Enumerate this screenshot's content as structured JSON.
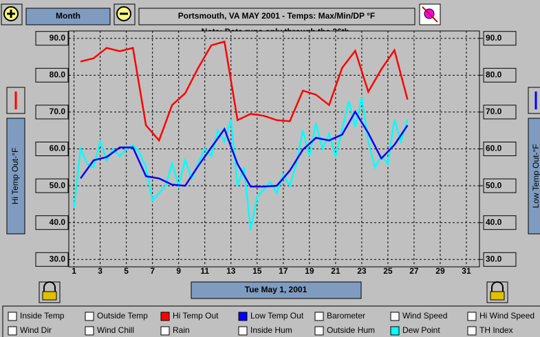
{
  "toolbar": {
    "period": "Month",
    "date": "Tue May 1, 2001"
  },
  "checkboxes": [
    "Inside Temp",
    "Outside Temp",
    "Barometer",
    "Wind Speed",
    "Hi Wind Speed",
    "Wind Dir",
    "Wind Chill",
    "Rain",
    "Inside Hum",
    "Outside Hum",
    "TH Index"
  ],
  "chart_data": {
    "type": "line",
    "title": "Portsmouth, VA MAY 2001 - Temps: Max/Min/DP °F",
    "subtitle": "Note: Data runs only through the 26th.",
    "y_label": "Hi Temp Out-°F",
    "y2_label": "Low Temp Out-°F",
    "xlim": [
      0.6,
      32
    ],
    "xticks": [
      1,
      3,
      5,
      7,
      9,
      11,
      13,
      15,
      17,
      19,
      21,
      23,
      25,
      27,
      29,
      31
    ],
    "ylim": [
      28,
      92
    ],
    "yticks": [
      {
        "value": 30,
        "label": "30.0"
      },
      {
        "value": 40,
        "label": "40.0"
      },
      {
        "value": 50,
        "label": "50.0"
      },
      {
        "value": 60,
        "label": "60.0"
      },
      {
        "value": 70,
        "label": "70.0"
      },
      {
        "value": 80,
        "label": "80.0"
      },
      {
        "value": 90,
        "label": "90.0"
      }
    ],
    "y2lim": [
      28,
      92
    ],
    "y2ticks": [
      {
        "value": 30,
        "label": "30.0"
      },
      {
        "value": 40,
        "label": "40.0"
      },
      {
        "value": 50,
        "label": "50.0"
      },
      {
        "value": 60,
        "label": "60.0"
      },
      {
        "value": 70,
        "label": "70.0"
      },
      {
        "value": 80,
        "label": "80.0"
      },
      {
        "value": 90,
        "label": "90.0"
      }
    ],
    "grid": true,
    "series": [
      {
        "name": "Hi Temp Out",
        "color": "#ff0000",
        "x": [
          1.5,
          2.5,
          3.5,
          4.5,
          5.5,
          6.5,
          7.5,
          8.5,
          9.5,
          10.5,
          11.5,
          12.5,
          13.5,
          14.5,
          15.5,
          16.5,
          17.5,
          18.5,
          19.5,
          20.5,
          21.5,
          22.5,
          23.5,
          24.5,
          25.5,
          26.5
        ],
        "values": [
          83.7,
          84.6,
          87.4,
          86.5,
          87.4,
          66.4,
          62.3,
          71.9,
          75.1,
          82.0,
          88.1,
          89.1,
          67.8,
          69.5,
          69.0,
          67.8,
          67.5,
          75.8,
          74.7,
          71.9,
          82.0,
          86.6,
          75.5,
          81.6,
          86.8,
          73.4
        ]
      },
      {
        "name": "Low Temp Out",
        "color": "#0000ff",
        "axis": "y2",
        "x": [
          1.5,
          2.5,
          3.5,
          4.5,
          5.5,
          6.5,
          7.5,
          8.5,
          9.5,
          10.5,
          11.5,
          12.5,
          13.5,
          14.5,
          15.5,
          16.5,
          17.5,
          18.5,
          19.5,
          20.5,
          21.5,
          22.5,
          23.5,
          24.5,
          25.5,
          26.5
        ],
        "values": [
          52.0,
          56.9,
          57.8,
          60.4,
          60.4,
          52.6,
          52.0,
          50.3,
          50.0,
          55.4,
          60.4,
          65.4,
          55.9,
          49.8,
          49.8,
          50.0,
          54.1,
          59.8,
          63.0,
          62.3,
          63.9,
          70.1,
          64.3,
          57.4,
          61.1,
          66.4
        ]
      },
      {
        "name": "Dew Point",
        "color": "#00ffff",
        "x": [
          1,
          1.5,
          2,
          2.5,
          3,
          3.5,
          4,
          4.5,
          5,
          5.5,
          6,
          6.5,
          7,
          7.5,
          8,
          8.5,
          9,
          9.5,
          10,
          10.5,
          11,
          11.5,
          12,
          12.5,
          13,
          13.5,
          14,
          14.5,
          15,
          15.5,
          16,
          16.5,
          17,
          17.5,
          18,
          18.5,
          19,
          19.5,
          20,
          20.5,
          21,
          21.5,
          22,
          22.5,
          23,
          23.5,
          24,
          24.5,
          25,
          25.5,
          26,
          26.5
        ],
        "values": [
          44,
          60,
          56,
          55,
          62,
          57,
          60,
          58,
          60,
          61,
          59,
          55,
          46,
          48,
          50,
          56,
          50,
          57,
          52,
          56,
          60,
          58,
          65,
          62,
          68,
          50,
          55,
          38,
          47,
          49,
          51,
          48,
          53,
          50,
          56,
          65,
          58,
          67,
          60,
          64,
          58,
          65,
          73,
          66,
          74,
          62,
          55,
          58,
          56,
          68,
          62,
          68
        ]
      }
    ]
  }
}
